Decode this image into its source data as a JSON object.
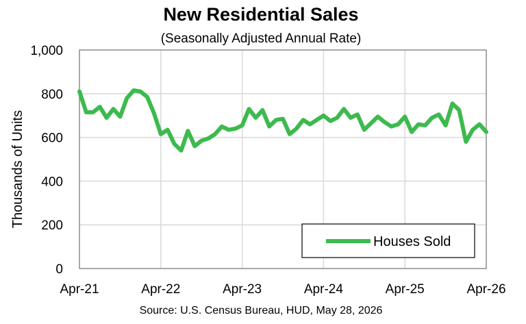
{
  "chart_data": {
    "type": "line",
    "title": "New Residential Sales",
    "subtitle": "(Seasonally Adjusted Annual Rate)",
    "ylabel": "Thousands of Units",
    "xlabel": "",
    "source": "Source:  U.S. Census Bureau, HUD, May 28, 2026",
    "ylim": [
      0,
      1000
    ],
    "yticks": [
      0,
      200,
      400,
      600,
      800,
      1000
    ],
    "ytick_labels": [
      "0",
      "200",
      "400",
      "600",
      "800",
      "1,000"
    ],
    "xtick_labels": [
      "Apr-21",
      "Apr-22",
      "Apr-23",
      "Apr-24",
      "Apr-25",
      "Apr-26"
    ],
    "grid": true,
    "legend_position": "bottom-right",
    "x_start": "Apr-21",
    "x_end": "Apr-26",
    "series": [
      {
        "name": "Houses Sold",
        "color": "#3dba4e",
        "values": [
          810,
          715,
          715,
          740,
          690,
          730,
          695,
          780,
          815,
          810,
          785,
          710,
          615,
          635,
          570,
          540,
          630,
          560,
          585,
          595,
          615,
          650,
          635,
          640,
          655,
          730,
          690,
          725,
          650,
          680,
          685,
          615,
          640,
          680,
          660,
          680,
          700,
          675,
          690,
          730,
          690,
          705,
          635,
          665,
          695,
          670,
          650,
          660,
          695,
          625,
          660,
          655,
          690,
          705,
          655,
          755,
          725,
          580,
          635,
          660,
          625
        ]
      }
    ]
  }
}
